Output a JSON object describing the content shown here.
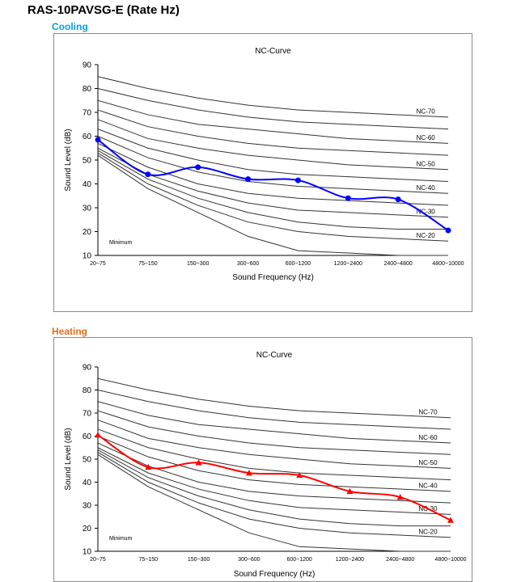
{
  "page": {
    "title": "RAS-10PAVSG-E (Rate Hz)"
  },
  "colors": {
    "cooling_label": "#00a0e0",
    "heating_label": "#e07020",
    "cooling_series": "#0000ff",
    "heating_series": "#ff0000",
    "nc_curve": "#333333"
  },
  "chart_data": [
    {
      "type": "line",
      "section_label": "Cooling",
      "title": "NC-Curve",
      "xlabel": "Sound Frequency (Hz)",
      "ylabel": "Sound Level (dB)",
      "categories": [
        "20~75",
        "75~150",
        "150~300",
        "300~600",
        "600~1200",
        "1200~2400",
        "2400~4800",
        "4800~10000"
      ],
      "ylim": [
        10,
        90
      ],
      "yticks": [
        10,
        20,
        30,
        40,
        50,
        60,
        70,
        80,
        90
      ],
      "grid": false,
      "marker": "circle",
      "minimum_label": "Minimum",
      "series": [
        {
          "values": [
            58.5,
            44,
            47,
            42,
            41.5,
            34,
            33.5,
            20.5
          ]
        }
      ],
      "reference_curves": [
        {
          "name": "NC-70",
          "values": [
            85,
            80,
            76,
            73,
            71,
            70,
            69,
            68
          ]
        },
        {
          "name": "",
          "values": [
            80,
            75,
            71,
            68,
            66,
            65,
            64,
            63
          ]
        },
        {
          "name": "NC-60",
          "values": [
            75,
            69,
            65,
            63,
            61,
            59,
            58,
            57
          ]
        },
        {
          "name": "",
          "values": [
            71,
            64,
            60,
            57,
            55,
            54,
            53,
            52
          ]
        },
        {
          "name": "NC-50",
          "values": [
            67,
            59,
            55,
            52,
            50,
            48,
            47,
            46
          ]
        },
        {
          "name": "",
          "values": [
            63,
            55,
            50,
            46,
            44,
            43,
            42,
            41
          ]
        },
        {
          "name": "NC-40",
          "values": [
            60,
            51,
            45,
            41,
            39,
            38,
            37,
            36
          ]
        },
        {
          "name": "",
          "values": [
            57,
            47,
            40,
            36,
            34,
            33,
            32,
            31
          ]
        },
        {
          "name": "NC-30",
          "values": [
            55,
            44,
            37,
            32,
            29,
            28,
            27,
            26
          ]
        },
        {
          "name": "",
          "values": [
            54,
            42,
            34,
            28,
            24,
            22,
            21,
            21
          ]
        },
        {
          "name": "NC-20",
          "values": [
            53,
            40,
            31,
            24,
            20,
            18,
            17,
            16
          ]
        },
        {
          "name": "",
          "values": [
            52,
            38,
            28,
            18,
            12,
            11,
            10,
            10
          ]
        }
      ]
    },
    {
      "type": "line",
      "section_label": "Heating",
      "title": "NC-Curve",
      "xlabel": "Sound Frequency (Hz)",
      "ylabel": "Sound Level (dB)",
      "categories": [
        "20~75",
        "75~150",
        "150~300",
        "300~600",
        "600~1200",
        "1200~2400",
        "2400~4800",
        "4800~10000"
      ],
      "ylim": [
        10,
        90
      ],
      "yticks": [
        10,
        20,
        30,
        40,
        50,
        60,
        70,
        80,
        90
      ],
      "grid": false,
      "marker": "triangle",
      "minimum_label": "Minimum",
      "series": [
        {
          "values": [
            60.5,
            46.5,
            48.5,
            44,
            43,
            36,
            33.5,
            23.5
          ]
        }
      ],
      "reference_curves": [
        {
          "name": "NC-70",
          "values": [
            85,
            80,
            76,
            73,
            71,
            70,
            69,
            68
          ]
        },
        {
          "name": "",
          "values": [
            80,
            75,
            71,
            68,
            66,
            65,
            64,
            63
          ]
        },
        {
          "name": "NC-60",
          "values": [
            75,
            69,
            65,
            63,
            61,
            59,
            58,
            57
          ]
        },
        {
          "name": "",
          "values": [
            71,
            64,
            60,
            57,
            55,
            54,
            53,
            52
          ]
        },
        {
          "name": "NC-50",
          "values": [
            67,
            59,
            55,
            52,
            50,
            48,
            47,
            46
          ]
        },
        {
          "name": "",
          "values": [
            63,
            55,
            50,
            46,
            44,
            43,
            42,
            41
          ]
        },
        {
          "name": "NC-40",
          "values": [
            60,
            51,
            45,
            41,
            39,
            38,
            37,
            36
          ]
        },
        {
          "name": "",
          "values": [
            57,
            47,
            40,
            36,
            34,
            33,
            32,
            31
          ]
        },
        {
          "name": "NC-30",
          "values": [
            55,
            44,
            37,
            32,
            29,
            28,
            27,
            26
          ]
        },
        {
          "name": "",
          "values": [
            54,
            42,
            34,
            28,
            24,
            22,
            21,
            21
          ]
        },
        {
          "name": "NC-20",
          "values": [
            53,
            40,
            31,
            24,
            20,
            18,
            17,
            16
          ]
        },
        {
          "name": "",
          "values": [
            52,
            38,
            28,
            18,
            12,
            11,
            10,
            10
          ]
        }
      ]
    }
  ]
}
